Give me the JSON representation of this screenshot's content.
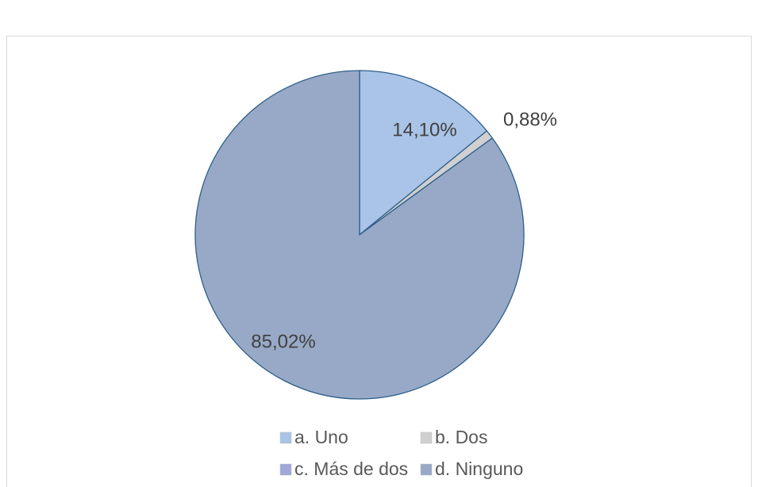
{
  "chart_data": {
    "type": "pie",
    "categories": [
      "a. Uno",
      "b. Dos",
      "c. Más de dos",
      "d. Ninguno"
    ],
    "values": [
      14.1,
      0.88,
      0,
      85.02
    ],
    "value_labels": [
      "14,10%",
      "0,88%",
      null,
      "85,02%"
    ],
    "colors": [
      "#a9c4e6",
      "#d0d0d0",
      "#9fa8d8",
      "#98a9c7"
    ],
    "legend": "bottom"
  }
}
